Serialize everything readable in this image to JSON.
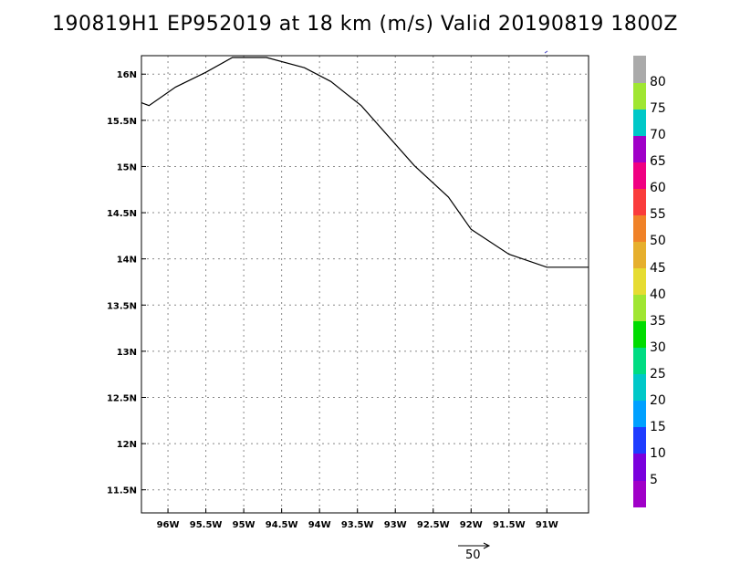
{
  "title": "190819H1 EP952019 at 18 km (m/s) Valid 20190819 1800Z",
  "map": {
    "lon_range": [
      -96.35,
      -90.45
    ],
    "lat_range": [
      11.25,
      16.2
    ],
    "lon_ticks": [
      -96,
      -95.5,
      -95,
      -94.5,
      -94,
      -93.5,
      -93,
      -92.5,
      -92,
      -91.5,
      -91
    ],
    "lon_tick_labels": [
      "96W",
      "95.5W",
      "95W",
      "94.5W",
      "94W",
      "93.5W",
      "93W",
      "92.5W",
      "92W",
      "91.5W",
      "91W"
    ],
    "lat_ticks": [
      11.5,
      12,
      12.5,
      13,
      13.5,
      14,
      14.5,
      15,
      15.5,
      16
    ],
    "lat_tick_labels": [
      "11.5N",
      "12N",
      "12.5N",
      "13N",
      "13.5N",
      "14N",
      "14.5N",
      "15N",
      "15.5N",
      "16N"
    ],
    "grid": "dotted",
    "coastline": [
      [
        -96.35,
        15.69
      ],
      [
        -96.25,
        15.66
      ],
      [
        -95.9,
        15.86
      ],
      [
        -95.5,
        16.02
      ],
      [
        -95.15,
        16.18
      ],
      [
        -94.7,
        16.18
      ],
      [
        -94.2,
        16.07
      ],
      [
        -93.85,
        15.92
      ],
      [
        -93.45,
        15.66
      ],
      [
        -92.75,
        15.01
      ],
      [
        -92.3,
        14.67
      ],
      [
        -92.0,
        14.32
      ],
      [
        -91.5,
        14.05
      ],
      [
        -91.0,
        13.91
      ],
      [
        -90.45,
        13.91
      ]
    ]
  },
  "colorbar": {
    "levels": [
      "5",
      "10",
      "15",
      "20",
      "25",
      "30",
      "35",
      "40",
      "45",
      "50",
      "55",
      "60",
      "65",
      "70",
      "75",
      "80"
    ],
    "colors": [
      "#a000c8",
      "#7a00dd",
      "#1e3cff",
      "#00a0ff",
      "#00c8c8",
      "#00dc82",
      "#00dc00",
      "#a0e632",
      "#e6dc32",
      "#e6af2d",
      "#f08228",
      "#fa3c3c",
      "#f00082",
      "#a000c8",
      "#00c8c8",
      "#a0e632",
      "#aaaaaa"
    ]
  },
  "reference_vector": {
    "label": "50"
  }
}
